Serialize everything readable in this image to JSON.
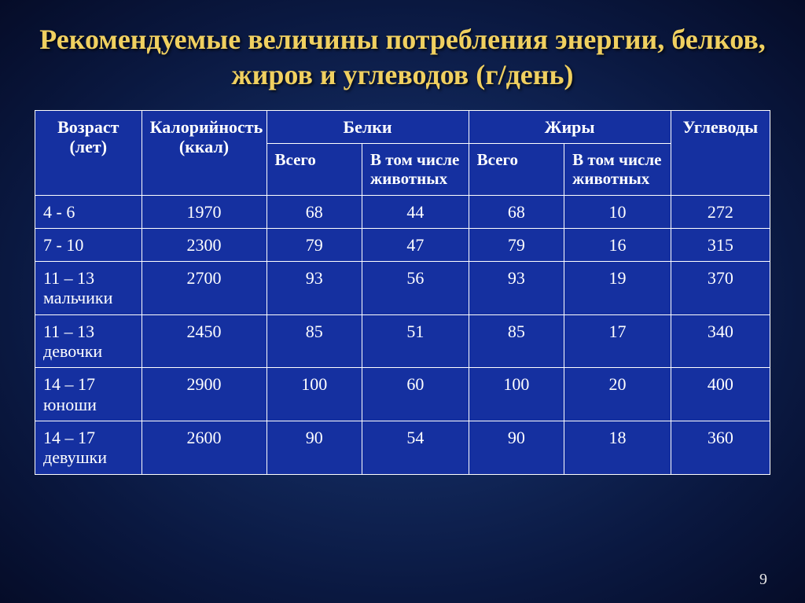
{
  "title": "Рекомендуемые величины потребления энергии, белков, жиров и углеводов (г/день)",
  "headers": {
    "age": "Возраст (лет)",
    "calories": "Калорийность (ккал)",
    "proteins": "Белки",
    "fats": "Жиры",
    "carbs": "Углеводы",
    "total": "Всего",
    "animal": "В том числе животных"
  },
  "rows": [
    {
      "age": "4 - 6",
      "cal": "1970",
      "p_total": "68",
      "p_anim": "44",
      "f_total": "68",
      "f_anim": "10",
      "carb": "272"
    },
    {
      "age": "7 - 10",
      "cal": "2300",
      "p_total": "79",
      "p_anim": "47",
      "f_total": "79",
      "f_anim": "16",
      "carb": "315"
    },
    {
      "age": "11 – 13 мальчики",
      "cal": "2700",
      "p_total": "93",
      "p_anim": "56",
      "f_total": "93",
      "f_anim": "19",
      "carb": "370"
    },
    {
      "age": "11 – 13 девочки",
      "cal": "2450",
      "p_total": "85",
      "p_anim": "51",
      "f_total": "85",
      "f_anim": "17",
      "carb": "340"
    },
    {
      "age": "14 – 17 юноши",
      "cal": "2900",
      "p_total": "100",
      "p_anim": "60",
      "f_total": "100",
      "f_anim": "20",
      "carb": "400"
    },
    {
      "age": "14 – 17 девушки",
      "cal": "2600",
      "p_total": "90",
      "p_anim": "54",
      "f_total": "90",
      "f_anim": "18",
      "carb": "360"
    }
  ],
  "page_number": "9",
  "colors": {
    "title": "#f0d060",
    "cell_bg": "#1530a0",
    "border": "#ffffff",
    "text": "#ffffff"
  }
}
